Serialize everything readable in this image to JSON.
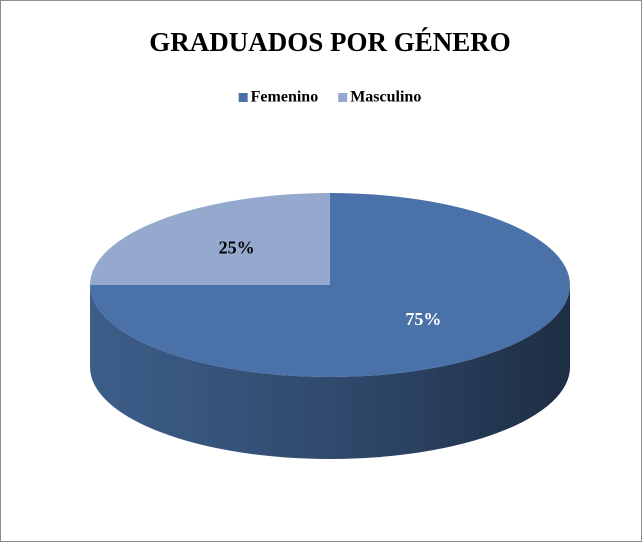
{
  "chart_data": {
    "type": "pie",
    "title": "GRADUADOS POR GÉNERO",
    "categories": [
      "Femenino",
      "Masculino"
    ],
    "values": [
      75,
      25
    ],
    "value_labels": [
      "75%",
      "25%"
    ],
    "colors": [
      "#4a72a8",
      "#95a9cf"
    ],
    "legend": "top"
  }
}
